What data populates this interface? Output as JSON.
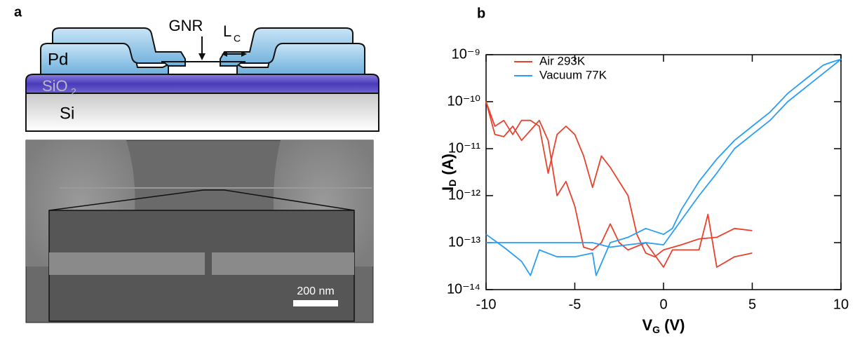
{
  "panel_a": {
    "label": "a",
    "gnr": "GNR",
    "lc": "L",
    "lc_sub": "C",
    "pd": "Pd",
    "sio2": "SiO",
    "sio2_sub": "2",
    "si": "Si",
    "scale_bar": "200 nm"
  },
  "chart_data": {
    "type": "line",
    "panel_label": "b",
    "xlabel": "V",
    "xlabel_sub": "G",
    "xlabel_unit": "(V)",
    "ylabel": "I",
    "ylabel_sub": "D",
    "ylabel_unit": "(A)",
    "xlim": [
      -10,
      10
    ],
    "xticks": [
      -10,
      -5,
      0,
      5,
      10
    ],
    "ylim": [
      1e-14,
      1e-09
    ],
    "log_y": true,
    "yticks": [
      {
        "value": 1e-14,
        "label": "10⁻¹⁴"
      },
      {
        "value": 1e-13,
        "label": "10⁻¹³"
      },
      {
        "value": 1e-12,
        "label": "10⁻¹²"
      },
      {
        "value": 1e-11,
        "label": "10⁻¹¹"
      },
      {
        "value": 1e-10,
        "label": "10⁻¹⁰"
      },
      {
        "value": 1e-09,
        "label": "10⁻⁹"
      }
    ],
    "legend": "upper left",
    "series": [
      {
        "name": "Air 293K",
        "color": "#e8412c",
        "x": [
          5,
          4,
          3,
          2,
          1,
          0,
          -0.5,
          -1,
          -1.5,
          -2,
          -3,
          -3.5,
          -4,
          -4.5,
          -5,
          -5.5,
          -6,
          -6.5,
          -7,
          -7.5,
          -8,
          -8.5,
          -9,
          -9.5,
          -10,
          -9.5,
          -9,
          -8.5,
          -8,
          -7,
          -6.5,
          -6,
          -5.5,
          -5,
          -4.5,
          -4,
          -3.5,
          -3,
          -2.5,
          -2,
          -1,
          0,
          0.5,
          1,
          2,
          2.5,
          3,
          4,
          5
        ],
        "values": [
          1.8e-13,
          2e-13,
          1.3e-13,
          1.2e-13,
          9e-14,
          7e-14,
          5e-14,
          6e-14,
          1.5e-13,
          1e-12,
          4e-12,
          7e-12,
          1.5e-12,
          7e-12,
          2e-11,
          3e-11,
          2e-11,
          3e-12,
          3e-11,
          4e-11,
          4e-11,
          2e-11,
          4e-11,
          3e-11,
          1e-10,
          2e-11,
          1.8e-11,
          3e-11,
          1.5e-11,
          4e-11,
          1.5e-11,
          1e-12,
          2e-12,
          6e-13,
          8e-14,
          7e-14,
          1e-13,
          2.5e-13,
          1e-13,
          7e-14,
          1e-13,
          3e-14,
          7e-14,
          7e-14,
          7e-14,
          4e-13,
          3e-14,
          5e-14,
          6e-14
        ]
      },
      {
        "name": "Vacuum 77K",
        "color": "#2a9df4",
        "x": [
          -10,
          -9,
          -8,
          -7.5,
          -7,
          -6,
          -5,
          -4,
          -3.8,
          -3,
          -2,
          -1,
          0,
          0.5,
          1,
          2,
          3,
          4,
          5,
          6,
          7,
          8,
          9,
          9.5,
          10,
          9,
          8,
          7,
          6,
          5,
          4,
          3,
          2,
          1,
          0,
          -1,
          -2,
          -3,
          -4,
          -6,
          -8,
          -10
        ],
        "values": [
          1.5e-13,
          8e-14,
          4e-14,
          2e-14,
          7e-14,
          5e-14,
          5e-14,
          6e-14,
          2e-14,
          1e-13,
          1.3e-13,
          2e-13,
          1.5e-13,
          2e-13,
          5e-13,
          2e-12,
          6e-12,
          1.5e-11,
          3e-11,
          6e-11,
          1.5e-10,
          3e-10,
          6e-10,
          7e-10,
          8e-10,
          4e-10,
          2e-10,
          1e-10,
          4e-11,
          2e-11,
          1e-11,
          3e-12,
          1e-12,
          3e-13,
          9e-14,
          1e-13,
          9e-14,
          8e-14,
          1e-13,
          1e-13,
          1e-13,
          1e-13
        ]
      }
    ]
  }
}
